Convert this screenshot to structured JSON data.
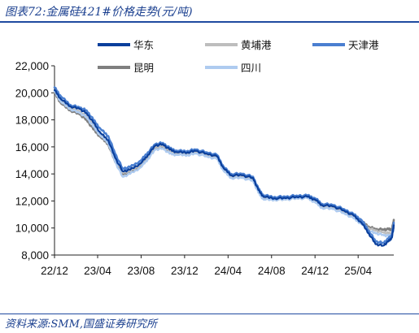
{
  "header": {
    "title": "图表72:金属硅421#价格走势(元/吨)"
  },
  "footer": {
    "source": "资料来源:SMM,国盛证券研究所"
  },
  "colors": {
    "华东": "#0a3f9c",
    "黄埔港": "#bdbdbd",
    "天津港": "#4a7fd0",
    "昆明": "#7f7f7f",
    "四川": "#aecbf0",
    "rule": "#1f4aa0"
  },
  "chart_data": {
    "type": "line",
    "title": "金属硅421#价格走势(元/吨)",
    "xlabel": "",
    "ylabel": "",
    "ylim": [
      8000,
      22000
    ],
    "yticks": [
      "8,000",
      "10,000",
      "12,000",
      "14,000",
      "16,000",
      "18,000",
      "20,000",
      "22,000"
    ],
    "xticks": [
      "22/12",
      "23/04",
      "23/08",
      "23/12",
      "24/04",
      "24/08",
      "24/12",
      "25/04"
    ],
    "xlim": [
      "2022-12-01",
      "2025-07-10"
    ],
    "grid": false,
    "legend": "top",
    "series": [
      {
        "name": "华东",
        "points": [
          [
            "2022-12-01",
            20200
          ],
          [
            "2022-12-20",
            19500
          ],
          [
            "2023-01-15",
            19000
          ],
          [
            "2023-02-10",
            18800
          ],
          [
            "2023-03-01",
            18500
          ],
          [
            "2023-03-20",
            17800
          ],
          [
            "2023-04-10",
            17000
          ],
          [
            "2023-05-01",
            16500
          ],
          [
            "2023-05-20",
            15200
          ],
          [
            "2023-06-10",
            14200
          ],
          [
            "2023-07-01",
            14300
          ],
          [
            "2023-08-01",
            14800
          ],
          [
            "2023-08-20",
            15400
          ],
          [
            "2023-09-10",
            16100
          ],
          [
            "2023-10-01",
            16200
          ],
          [
            "2023-10-20",
            15800
          ],
          [
            "2023-11-10",
            15600
          ],
          [
            "2023-12-10",
            15600
          ],
          [
            "2024-01-01",
            15700
          ],
          [
            "2024-02-01",
            15500
          ],
          [
            "2024-03-01",
            15300
          ],
          [
            "2024-03-20",
            14400
          ],
          [
            "2024-04-10",
            13900
          ],
          [
            "2024-05-10",
            13900
          ],
          [
            "2024-06-10",
            13700
          ],
          [
            "2024-06-25",
            12800
          ],
          [
            "2024-07-10",
            12300
          ],
          [
            "2024-08-10",
            12200
          ],
          [
            "2024-09-10",
            12200
          ],
          [
            "2024-10-10",
            12300
          ],
          [
            "2024-11-10",
            12300
          ],
          [
            "2024-12-01",
            12100
          ],
          [
            "2024-12-20",
            11700
          ],
          [
            "2025-01-20",
            11600
          ],
          [
            "2025-02-20",
            11300
          ],
          [
            "2025-03-20",
            10900
          ],
          [
            "2025-04-10",
            10400
          ],
          [
            "2025-05-01",
            9600
          ],
          [
            "2025-05-20",
            8800
          ],
          [
            "2025-06-10",
            8700
          ],
          [
            "2025-06-25",
            9000
          ],
          [
            "2025-07-05",
            9300
          ],
          [
            "2025-07-10",
            10200
          ]
        ]
      },
      {
        "name": "黄埔港",
        "points": [
          [
            "2022-12-01",
            20100
          ],
          [
            "2022-12-20",
            19400
          ],
          [
            "2023-01-15",
            18900
          ],
          [
            "2023-02-10",
            18600
          ],
          [
            "2023-03-01",
            18300
          ],
          [
            "2023-03-20",
            17700
          ],
          [
            "2023-04-10",
            16900
          ],
          [
            "2023-05-01",
            16400
          ],
          [
            "2023-05-20",
            15100
          ],
          [
            "2023-06-10",
            14100
          ],
          [
            "2023-07-01",
            14200
          ],
          [
            "2023-08-01",
            14700
          ],
          [
            "2023-08-20",
            15300
          ],
          [
            "2023-09-10",
            16000
          ],
          [
            "2023-10-01",
            16100
          ],
          [
            "2023-10-20",
            15700
          ],
          [
            "2023-11-10",
            15500
          ],
          [
            "2023-12-10",
            15500
          ],
          [
            "2024-01-01",
            15600
          ],
          [
            "2024-02-01",
            15400
          ],
          [
            "2024-03-01",
            15200
          ],
          [
            "2024-03-20",
            14300
          ],
          [
            "2024-04-10",
            13800
          ],
          [
            "2024-05-10",
            13800
          ],
          [
            "2024-06-10",
            13600
          ],
          [
            "2024-06-25",
            12700
          ],
          [
            "2024-07-10",
            12200
          ],
          [
            "2024-08-10",
            12100
          ],
          [
            "2024-09-10",
            12100
          ],
          [
            "2024-10-10",
            12200
          ],
          [
            "2024-11-10",
            12200
          ],
          [
            "2024-12-01",
            12000
          ],
          [
            "2024-12-20",
            11600
          ],
          [
            "2025-01-20",
            11500
          ],
          [
            "2025-02-20",
            11200
          ],
          [
            "2025-03-20",
            10800
          ],
          [
            "2025-04-10",
            10400
          ],
          [
            "2025-05-01",
            10000
          ],
          [
            "2025-05-20",
            9800
          ],
          [
            "2025-06-10",
            9700
          ],
          [
            "2025-06-25",
            9600
          ],
          [
            "2025-07-05",
            9600
          ],
          [
            "2025-07-10",
            10000
          ]
        ]
      },
      {
        "name": "天津港",
        "points": [
          [
            "2022-12-01",
            20400
          ],
          [
            "2022-12-20",
            19700
          ],
          [
            "2023-01-15",
            19100
          ],
          [
            "2023-02-10",
            18900
          ],
          [
            "2023-03-01",
            18700
          ],
          [
            "2023-03-20",
            18000
          ],
          [
            "2023-04-10",
            17300
          ],
          [
            "2023-05-01",
            16800
          ],
          [
            "2023-05-20",
            15500
          ],
          [
            "2023-06-10",
            14400
          ],
          [
            "2023-07-01",
            14500
          ],
          [
            "2023-08-01",
            15000
          ],
          [
            "2023-08-20",
            15600
          ],
          [
            "2023-09-10",
            16200
          ],
          [
            "2023-10-01",
            16300
          ],
          [
            "2023-10-20",
            15900
          ],
          [
            "2023-11-10",
            15700
          ],
          [
            "2023-12-10",
            15700
          ],
          [
            "2024-01-01",
            15800
          ],
          [
            "2024-02-01",
            15600
          ],
          [
            "2024-03-01",
            15400
          ],
          [
            "2024-03-20",
            14500
          ],
          [
            "2024-04-10",
            14000
          ],
          [
            "2024-05-10",
            14000
          ],
          [
            "2024-06-10",
            13800
          ],
          [
            "2024-06-25",
            12900
          ],
          [
            "2024-07-10",
            12400
          ],
          [
            "2024-08-10",
            12300
          ],
          [
            "2024-09-10",
            12300
          ],
          [
            "2024-10-10",
            12400
          ],
          [
            "2024-11-10",
            12400
          ],
          [
            "2024-12-01",
            12200
          ],
          [
            "2024-12-20",
            11800
          ],
          [
            "2025-01-20",
            11700
          ],
          [
            "2025-02-20",
            11400
          ],
          [
            "2025-03-20",
            11000
          ],
          [
            "2025-04-10",
            10600
          ],
          [
            "2025-05-01",
            9800
          ],
          [
            "2025-05-20",
            9000
          ],
          [
            "2025-06-10",
            8900
          ],
          [
            "2025-06-25",
            9200
          ],
          [
            "2025-07-05",
            9500
          ],
          [
            "2025-07-10",
            10400
          ]
        ]
      },
      {
        "name": "昆明",
        "points": [
          [
            "2022-12-01",
            20000
          ],
          [
            "2022-12-20",
            19200
          ],
          [
            "2023-01-15",
            18700
          ],
          [
            "2023-02-10",
            18400
          ],
          [
            "2023-03-01",
            18000
          ],
          [
            "2023-03-20",
            17300
          ],
          [
            "2023-04-10",
            16700
          ],
          [
            "2023-05-01",
            16200
          ],
          [
            "2023-05-20",
            14900
          ],
          [
            "2023-06-10",
            14000
          ],
          [
            "2023-07-01",
            14100
          ],
          [
            "2023-08-01",
            14600
          ],
          [
            "2023-08-20",
            15200
          ],
          [
            "2023-09-10",
            15900
          ],
          [
            "2023-10-01",
            16000
          ],
          [
            "2023-10-20",
            15700
          ],
          [
            "2023-11-10",
            15600
          ],
          [
            "2023-12-10",
            15700
          ],
          [
            "2024-01-01",
            15700
          ],
          [
            "2024-02-01",
            15500
          ],
          [
            "2024-03-01",
            15200
          ],
          [
            "2024-03-20",
            14300
          ],
          [
            "2024-04-10",
            13800
          ],
          [
            "2024-05-10",
            13800
          ],
          [
            "2024-06-10",
            13600
          ],
          [
            "2024-06-25",
            12700
          ],
          [
            "2024-07-10",
            12200
          ],
          [
            "2024-08-10",
            12200
          ],
          [
            "2024-09-10",
            12200
          ],
          [
            "2024-10-10",
            12300
          ],
          [
            "2024-11-10",
            12300
          ],
          [
            "2024-12-01",
            12000
          ],
          [
            "2024-12-20",
            11600
          ],
          [
            "2025-01-20",
            11500
          ],
          [
            "2025-02-20",
            11200
          ],
          [
            "2025-03-20",
            10900
          ],
          [
            "2025-04-10",
            10500
          ],
          [
            "2025-05-01",
            10100
          ],
          [
            "2025-05-20",
            9900
          ],
          [
            "2025-06-10",
            9900
          ],
          [
            "2025-06-25",
            9900
          ],
          [
            "2025-07-05",
            9900
          ],
          [
            "2025-07-10",
            10600
          ]
        ]
      },
      {
        "name": "四川",
        "points": [
          [
            "2022-12-01",
            20100
          ],
          [
            "2022-12-20",
            19300
          ],
          [
            "2023-01-15",
            18800
          ],
          [
            "2023-02-10",
            18500
          ],
          [
            "2023-03-01",
            18200
          ],
          [
            "2023-03-20",
            17500
          ],
          [
            "2023-04-10",
            16800
          ],
          [
            "2023-05-01",
            16300
          ],
          [
            "2023-05-20",
            14900
          ],
          [
            "2023-06-10",
            13800
          ],
          [
            "2023-07-01",
            14000
          ],
          [
            "2023-08-01",
            14500
          ],
          [
            "2023-08-20",
            15100
          ],
          [
            "2023-09-10",
            15800
          ],
          [
            "2023-10-01",
            15900
          ],
          [
            "2023-10-20",
            15500
          ],
          [
            "2023-11-10",
            15400
          ],
          [
            "2023-12-10",
            15400
          ],
          [
            "2024-01-01",
            15500
          ],
          [
            "2024-02-01",
            15300
          ],
          [
            "2024-03-01",
            15100
          ],
          [
            "2024-03-20",
            14200
          ],
          [
            "2024-04-10",
            13700
          ],
          [
            "2024-05-10",
            13700
          ],
          [
            "2024-06-10",
            13500
          ],
          [
            "2024-06-25",
            12600
          ],
          [
            "2024-07-10",
            12100
          ],
          [
            "2024-08-10",
            12100
          ],
          [
            "2024-09-10",
            12100
          ],
          [
            "2024-10-10",
            12200
          ],
          [
            "2024-11-10",
            12200
          ],
          [
            "2024-12-01",
            11900
          ],
          [
            "2024-12-20",
            11500
          ],
          [
            "2025-01-20",
            11400
          ],
          [
            "2025-02-20",
            11100
          ],
          [
            "2025-03-20",
            10700
          ],
          [
            "2025-04-10",
            10300
          ],
          [
            "2025-05-01",
            9800
          ],
          [
            "2025-05-20",
            9600
          ],
          [
            "2025-06-10",
            9500
          ],
          [
            "2025-06-25",
            9400
          ],
          [
            "2025-07-05",
            9500
          ],
          [
            "2025-07-10",
            9900
          ]
        ]
      }
    ]
  }
}
